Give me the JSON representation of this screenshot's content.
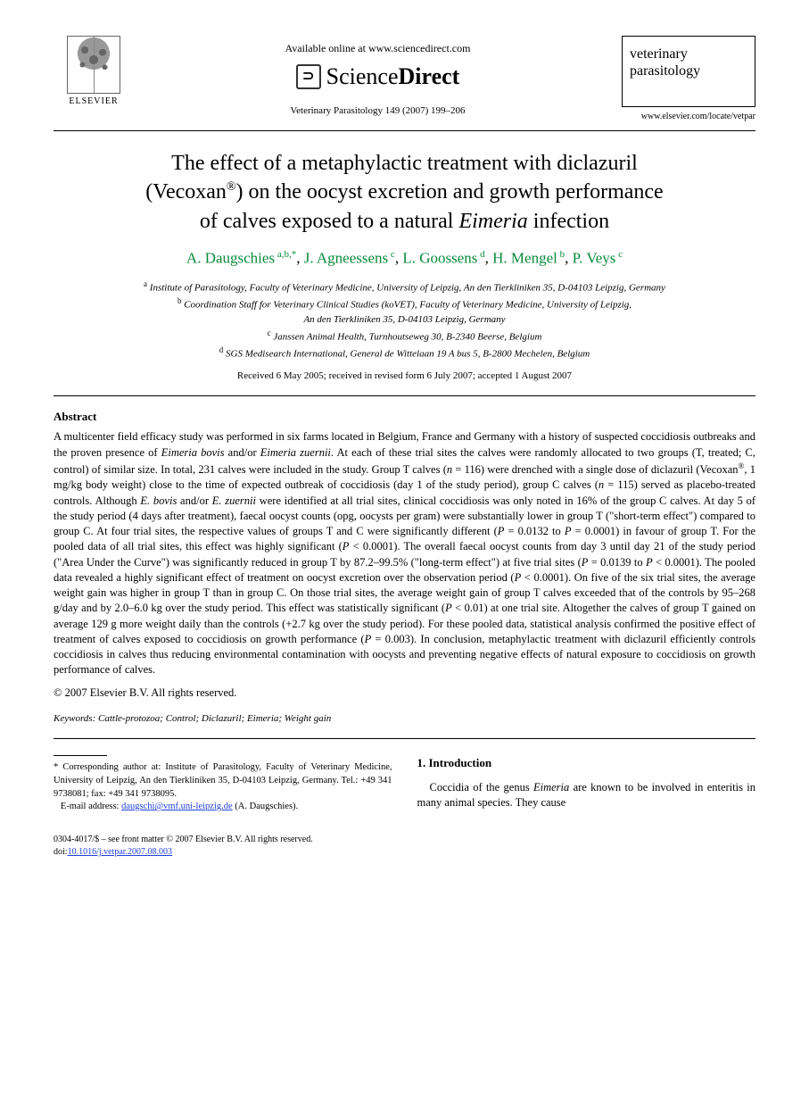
{
  "header": {
    "elsevier_label": "ELSEVIER",
    "available_online": "Available online at www.sciencedirect.com",
    "sciencedirect_prefix": "Science",
    "sciencedirect_suffix": "Direct",
    "journal_reference": "Veterinary Parasitology 149 (2007) 199–206",
    "journal_box_line1": "veterinary",
    "journal_box_line2": "parasitology",
    "journal_url": "www.elsevier.com/locate/vetpar"
  },
  "title": {
    "line1": "The effect of a metaphylactic treatment with diclazuril",
    "line2_a": "(Vecoxan",
    "line2_sup": "®",
    "line2_b": ") on the oocyst excretion and growth performance",
    "line3_a": "of calves exposed to a natural ",
    "line3_italic": "Eimeria",
    "line3_b": " infection"
  },
  "authors": {
    "a1_name": "A. Daugschies",
    "a1_sup": "a,b,*",
    "a2_name": "J. Agneessens",
    "a2_sup": "c",
    "a3_name": "L. Goossens",
    "a3_sup": "d",
    "a4_name": "H. Mengel",
    "a4_sup": "b",
    "a5_name": "P. Veys",
    "a5_sup": "c"
  },
  "affiliations": {
    "a": "Institute of Parasitology, Faculty of Veterinary Medicine, University of Leipzig, An den Tierkliniken 35, D-04103 Leipzig, Germany",
    "b1": "Coordination Staff for Veterinary Clinical Studies (koVET), Faculty of Veterinary Medicine, University of Leipzig,",
    "b2": "An den Tierkliniken 35, D-04103 Leipzig, Germany",
    "c": "Janssen Animal Health, Turnhoutseweg 30, B-2340 Beerse, Belgium",
    "d": "SGS Medisearch International, General de Wittelaan 19 A bus 5, B-2800 Mechelen, Belgium"
  },
  "dates": "Received 6 May 2005; received in revised form 6 July 2007; accepted 1 August 2007",
  "abstract": {
    "heading": "Abstract",
    "body_html": "A multicenter field efficacy study was performed in six farms located in Belgium, France and Germany with a history of suspected coccidiosis outbreaks and the proven presence of <span class=\"italic\">Eimeria bovis</span> and/or <span class=\"italic\">Eimeria zuernii</span>. At each of these trial sites the calves were randomly allocated to two groups (T, treated; C, control) of similar size. In total, 231 calves were included in the study. Group T calves (<span class=\"italic\">n</span> = 116) were drenched with a single dose of diclazuril (Vecoxan<sup>®</sup>, 1 mg/kg body weight) close to the time of expected outbreak of coccidiosis (day 1 of the study period), group C calves (<span class=\"italic\">n</span> = 115) served as placebo-treated controls. Although <span class=\"italic\">E. bovis</span> and/or <span class=\"italic\">E. zuernii</span> were identified at all trial sites, clinical coccidiosis was only noted in 16% of the group C calves. At day 5 of the study period (4 days after treatment), faecal oocyst counts (opg, oocysts per gram) were substantially lower in group T (\"short-term effect\") compared to group C. At four trial sites, the respective values of groups T and C were significantly different (<span class=\"italic\">P</span> = 0.0132 to <span class=\"italic\">P</span> = 0.0001) in favour of group T. For the pooled data of all trial sites, this effect was highly significant (<span class=\"italic\">P</span> &lt; 0.0001). The overall faecal oocyst counts from day 3 until day 21 of the study period (\"Area Under the Curve\") was significantly reduced in group T by 87.2–99.5% (\"long-term effect\") at five trial sites (<span class=\"italic\">P</span> = 0.0139 to <span class=\"italic\">P</span> &lt; 0.0001). The pooled data revealed a highly significant effect of treatment on oocyst excretion over the observation period (<span class=\"italic\">P</span> &lt; 0.0001). On five of the six trial sites, the average weight gain was higher in group T than in group C. On those trial sites, the average weight gain of group T calves exceeded that of the controls by 95–268 g/day and by 2.0–6.0 kg over the study period. This effect was statistically significant (<span class=\"italic\">P</span> &lt; 0.01) at one trial site. Altogether the calves of group T gained on average 129 g more weight daily than the controls (+2.7 kg over the study period). For these pooled data, statistical analysis confirmed the positive effect of treatment of calves exposed to coccidiosis on growth performance (<span class=\"italic\">P</span> = 0.003). In conclusion, metaphylactic treatment with diclazuril efficiently controls coccidiosis in calves thus reducing environmental contamination with oocysts and preventing negative effects of natural exposure to coccidiosis on growth performance of calves.",
    "copyright": "© 2007 Elsevier B.V. All rights reserved."
  },
  "keywords": {
    "label": "Keywords:",
    "text": " Cattle-protozoa; Control; Diclazuril; Eimeria; Weight gain"
  },
  "footnote": {
    "corr_html": "* Corresponding author at: Institute of Parasitology, Faculty of Veterinary Medicine, University of Leipzig, An den Tierkliniken 35, D-04103 Leipzig, Germany. Tel.: +49 341 9738081; fax: +49 341 9738095.",
    "email_label": "E-mail address:",
    "email": "daugschi@vmf.uni-leipzig.de",
    "email_suffix": " (A. Daugschies)."
  },
  "intro": {
    "heading": "1.  Introduction",
    "body_html": "Coccidia of the genus <span class=\"italic\">Eimeria</span> are known to be involved in enteritis in many animal species. They cause"
  },
  "footer": {
    "line1": "0304-4017/$ – see front matter © 2007 Elsevier B.V. All rights reserved.",
    "doi_prefix": "doi:",
    "doi": "10.1016/j.vetpar.2007.08.003"
  }
}
